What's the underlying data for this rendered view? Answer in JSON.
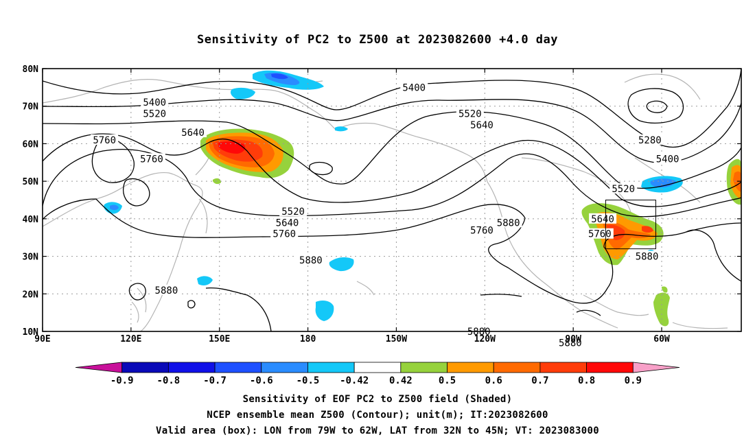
{
  "title": "Sensitivity of PC2 to Z500 at 2023082600 +4.0 day",
  "map": {
    "lon_range": [
      90,
      327
    ],
    "lat_range": [
      10,
      80
    ],
    "lat_ticks": [
      {
        "lat": 80,
        "label": "80N"
      },
      {
        "lat": 70,
        "label": "70N"
      },
      {
        "lat": 60,
        "label": "60N"
      },
      {
        "lat": 50,
        "label": "50N"
      },
      {
        "lat": 40,
        "label": "40N"
      },
      {
        "lat": 30,
        "label": "30N"
      },
      {
        "lat": 20,
        "label": "20N"
      },
      {
        "lat": 10,
        "label": "10N"
      }
    ],
    "lon_ticks": [
      {
        "lon": 90,
        "label": "90E"
      },
      {
        "lon": 120,
        "label": "120E"
      },
      {
        "lon": 150,
        "label": "150E"
      },
      {
        "lon": 180,
        "label": "180"
      },
      {
        "lon": 210,
        "label": "150W"
      },
      {
        "lon": 240,
        "label": "120W"
      },
      {
        "lon": 270,
        "label": "90W"
      },
      {
        "lon": 300,
        "label": "60W"
      }
    ],
    "contour_labels": [
      {
        "text": "5400",
        "lon": 128,
        "lat": 71
      },
      {
        "text": "5520",
        "lon": 128,
        "lat": 68
      },
      {
        "text": "5640",
        "lon": 141,
        "lat": 63
      },
      {
        "text": "5760",
        "lon": 111,
        "lat": 61
      },
      {
        "text": "5760",
        "lon": 127,
        "lat": 56
      },
      {
        "text": "5520",
        "lon": 175,
        "lat": 42
      },
      {
        "text": "5640",
        "lon": 173,
        "lat": 39
      },
      {
        "text": "5760",
        "lon": 172,
        "lat": 36
      },
      {
        "text": "5880",
        "lon": 181,
        "lat": 29
      },
      {
        "text": "5880",
        "lon": 132,
        "lat": 21
      },
      {
        "text": "5400",
        "lon": 216,
        "lat": 75
      },
      {
        "text": "5520",
        "lon": 235,
        "lat": 68
      },
      {
        "text": "5640",
        "lon": 239,
        "lat": 65
      },
      {
        "text": "5760",
        "lon": 239,
        "lat": 37
      },
      {
        "text": "5880",
        "lon": 248,
        "lat": 39
      },
      {
        "text": "5880",
        "lon": 238,
        "lat": 10
      },
      {
        "text": "5880",
        "lon": 269,
        "lat": 7
      },
      {
        "text": "5280",
        "lon": 296,
        "lat": 61
      },
      {
        "text": "5400",
        "lon": 302,
        "lat": 56
      },
      {
        "text": "5520",
        "lon": 287,
        "lat": 48
      },
      {
        "text": "5640",
        "lon": 280,
        "lat": 40
      },
      {
        "text": "5760",
        "lon": 279,
        "lat": 36
      },
      {
        "text": "5880",
        "lon": 295,
        "lat": 30
      }
    ],
    "valid_box": {
      "lon_min": 281,
      "lon_max": 298,
      "lat_min": 32,
      "lat_max": 45
    }
  },
  "colorbar": {
    "labels": [
      "-0.9",
      "-0.8",
      "-0.7",
      "-0.6",
      "-0.5",
      "-0.42",
      "0.42",
      "0.5",
      "0.6",
      "0.7",
      "0.8",
      "0.9"
    ],
    "colors": [
      "#c8109a",
      "#0a0ab8",
      "#1010e8",
      "#1e50ff",
      "#2a8cff",
      "#14c8f8",
      "#ffffff",
      "#96d23c",
      "#ff9a00",
      "#ff6a00",
      "#ff3c0a",
      "#ff0808",
      "#f8a0c8"
    ]
  },
  "footer": {
    "line1": "Sensitivity of EOF PC2 to Z500 field (Shaded)",
    "line2": "NCEP ensemble mean Z500 (Contour); unit(m); IT:2023082600",
    "line3": "Valid area (box): LON from 79W to 62W, LAT from 32N to 45N; VT: 2023083000"
  }
}
